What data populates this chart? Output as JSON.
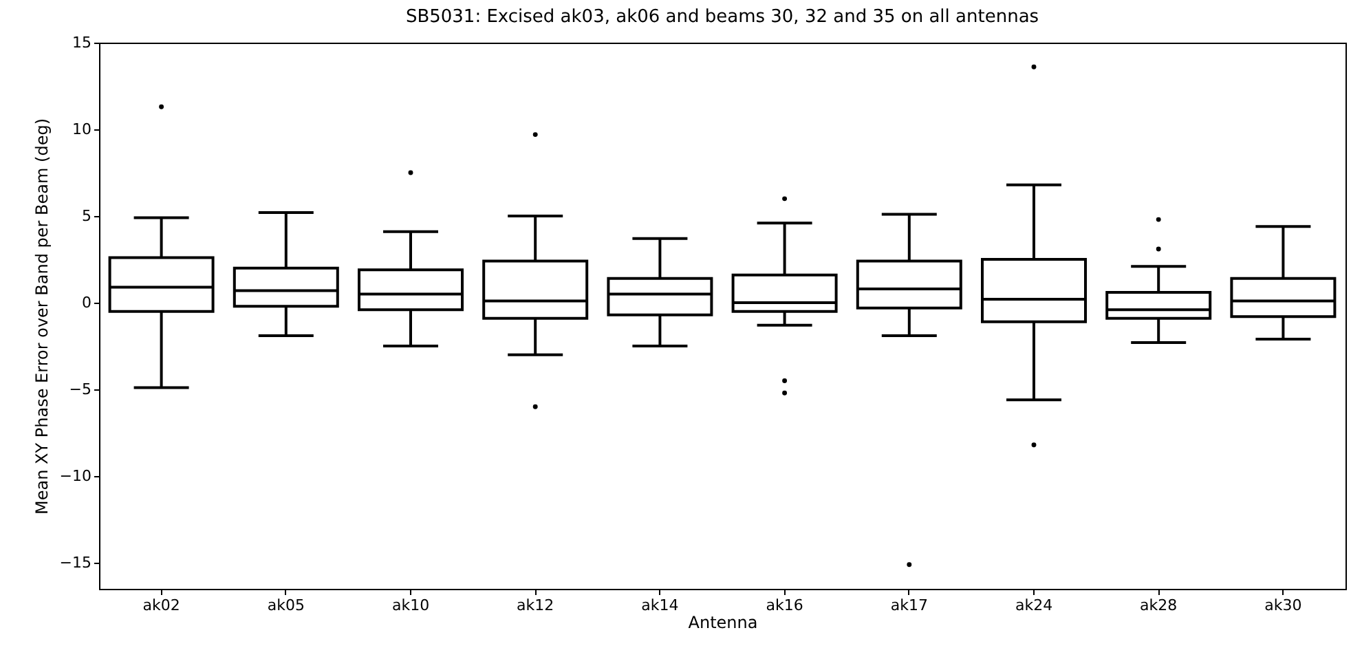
{
  "chart_data": {
    "type": "box",
    "title": "SB5031: Excised ak03, ak06 and beams 30, 32 and 35 on all antennas",
    "xlabel": "Antenna",
    "ylabel": "Mean XY Phase Error over Band per Beam (deg)",
    "categories": [
      "ak02",
      "ak05",
      "ak10",
      "ak12",
      "ak14",
      "ak16",
      "ak17",
      "ak24",
      "ak28",
      "ak30"
    ],
    "boxes": [
      {
        "low": -4.9,
        "q1": -0.5,
        "median": 0.9,
        "q3": 2.6,
        "high": 4.9,
        "outliers": [
          11.3
        ]
      },
      {
        "low": -1.9,
        "q1": -0.2,
        "median": 0.7,
        "q3": 2.0,
        "high": 5.2
      },
      {
        "low": -2.5,
        "q1": -0.4,
        "median": 0.5,
        "q3": 1.9,
        "high": 4.1,
        "outliers": [
          7.5
        ]
      },
      {
        "low": -3.0,
        "q1": -0.9,
        "median": 0.1,
        "q3": 2.4,
        "high": 5.0,
        "outliers": [
          9.7,
          -6.0
        ]
      },
      {
        "low": -2.5,
        "q1": -0.7,
        "median": 0.5,
        "q3": 1.4,
        "high": 3.7
      },
      {
        "low": -1.3,
        "q1": -0.5,
        "median": 0.0,
        "q3": 1.6,
        "high": 4.6,
        "outliers": [
          6.0,
          -4.5,
          -5.2
        ]
      },
      {
        "low": -1.9,
        "q1": -0.3,
        "median": 0.8,
        "q3": 2.4,
        "high": 5.1,
        "outliers": [
          -15.1
        ]
      },
      {
        "low": -5.6,
        "q1": -1.1,
        "median": 0.2,
        "q3": 2.5,
        "high": 6.8,
        "outliers": [
          13.6,
          -8.2
        ]
      },
      {
        "low": -2.3,
        "q1": -0.9,
        "median": -0.4,
        "q3": 0.6,
        "high": 2.1,
        "outliers": [
          3.1,
          4.8
        ]
      },
      {
        "low": -2.1,
        "q1": -0.8,
        "median": 0.1,
        "q3": 1.4,
        "high": 4.4
      }
    ],
    "color": "#000000",
    "ylim": [
      -16.5,
      15
    ],
    "yticks": [
      -15,
      -10,
      -5,
      0,
      5,
      10,
      15
    ],
    "grid": false
  }
}
